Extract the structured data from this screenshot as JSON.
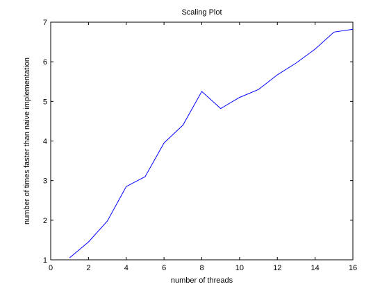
{
  "chart_data": {
    "type": "line",
    "title": "Scaling Plot",
    "xlabel": "number of threads",
    "ylabel": "number of times faster than naive implementation",
    "xlim": [
      0,
      16
    ],
    "ylim": [
      1,
      7
    ],
    "xticks": [
      0,
      2,
      4,
      6,
      8,
      10,
      12,
      14,
      16
    ],
    "yticks": [
      1,
      2,
      3,
      4,
      5,
      6,
      7
    ],
    "grid": false,
    "legend": false,
    "series": [
      {
        "color": "#0000ff",
        "x": [
          1,
          2,
          3,
          4,
          5,
          6,
          7,
          8,
          9,
          10,
          11,
          12,
          13,
          14,
          15,
          16
        ],
        "y": [
          1.05,
          1.45,
          1.98,
          2.85,
          3.1,
          3.95,
          4.4,
          5.25,
          4.82,
          5.1,
          5.3,
          5.67,
          5.97,
          6.32,
          6.75,
          6.82
        ]
      }
    ]
  }
}
